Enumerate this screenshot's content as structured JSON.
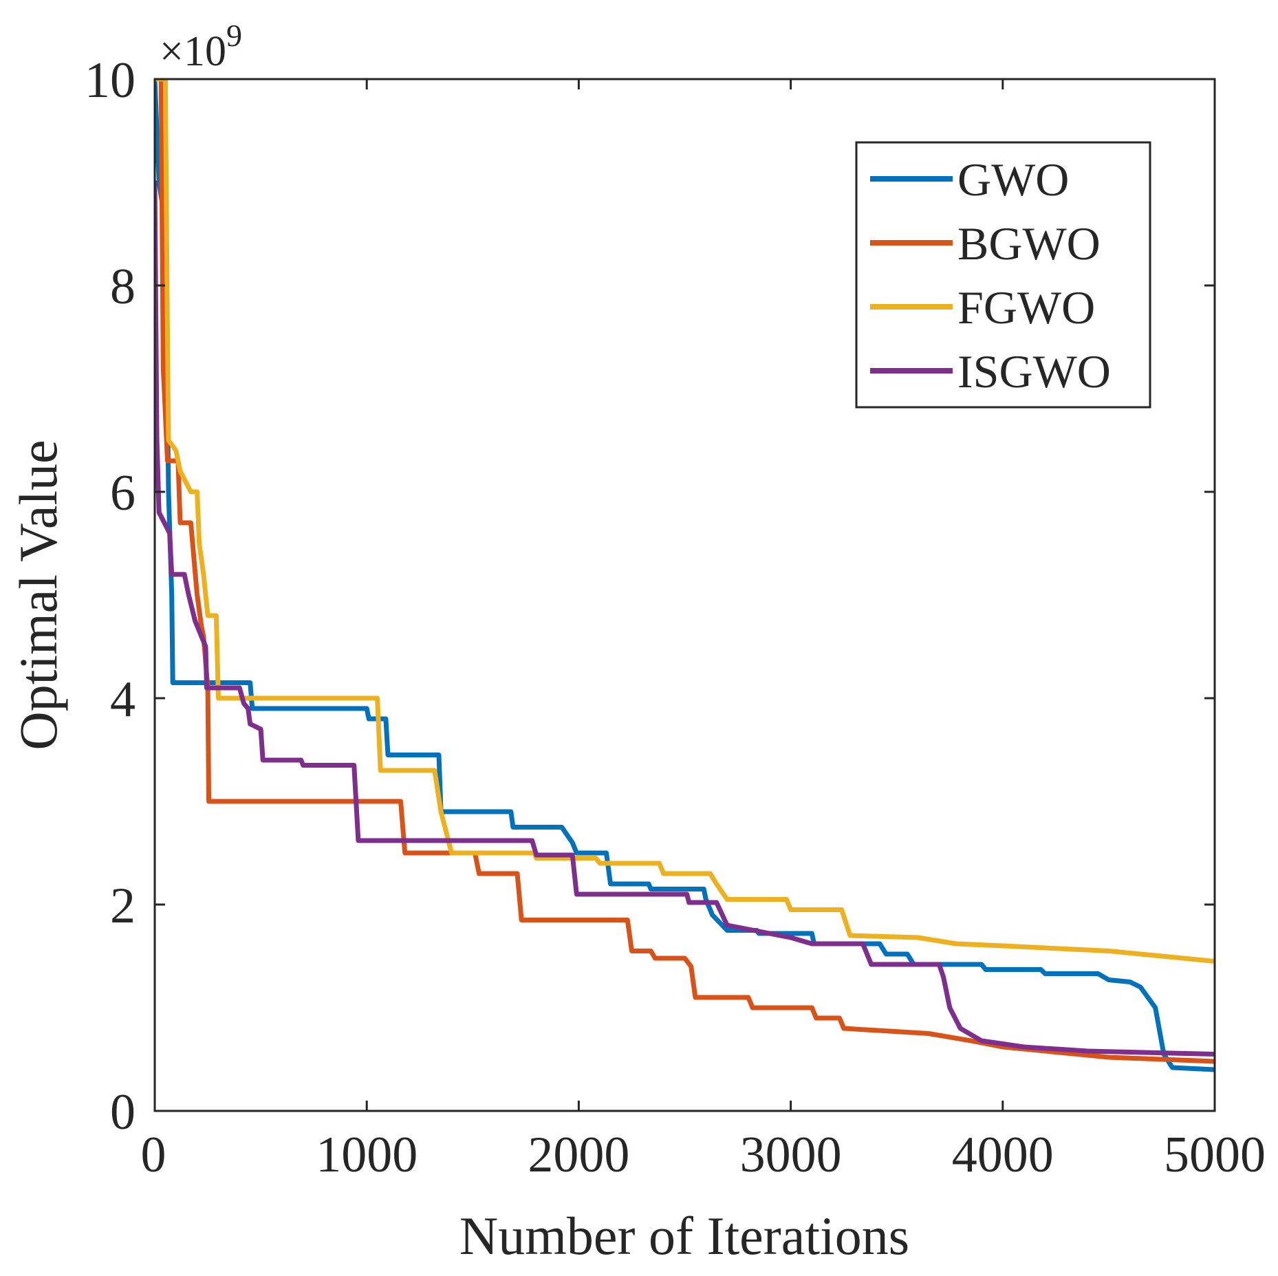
{
  "chart_data": {
    "type": "line",
    "title": "",
    "xlabel": "Number of Iterations",
    "ylabel": "Optimal Value",
    "y_multiplier_label": "×10",
    "y_multiplier_exponent": "9",
    "xlim": [
      0,
      5000
    ],
    "ylim": [
      0,
      10
    ],
    "x_ticks": [
      0,
      1000,
      2000,
      3000,
      4000,
      5000
    ],
    "y_ticks": [
      0,
      2,
      4,
      6,
      8,
      10
    ],
    "x_tick_labels": [
      "0",
      "1000",
      "2000",
      "3000",
      "4000",
      "5000"
    ],
    "y_tick_labels": [
      "0",
      "2",
      "4",
      "6",
      "8",
      "10"
    ],
    "grid": false,
    "legend_position": "top-right",
    "series": [
      {
        "name": "GWO",
        "color": "#0072BD",
        "points": [
          [
            0,
            10
          ],
          [
            20,
            9
          ],
          [
            50,
            8.6
          ],
          [
            65,
            6
          ],
          [
            80,
            5
          ],
          [
            85,
            4.15
          ],
          [
            450,
            4.15
          ],
          [
            460,
            3.9
          ],
          [
            1000,
            3.9
          ],
          [
            1010,
            3.8
          ],
          [
            1090,
            3.8
          ],
          [
            1100,
            3.45
          ],
          [
            1340,
            3.45
          ],
          [
            1350,
            2.9
          ],
          [
            1680,
            2.9
          ],
          [
            1690,
            2.75
          ],
          [
            1920,
            2.75
          ],
          [
            1970,
            2.6
          ],
          [
            1990,
            2.5
          ],
          [
            2130,
            2.5
          ],
          [
            2150,
            2.2
          ],
          [
            2330,
            2.2
          ],
          [
            2340,
            2.15
          ],
          [
            2590,
            2.15
          ],
          [
            2600,
            2.05
          ],
          [
            2630,
            1.9
          ],
          [
            2700,
            1.75
          ],
          [
            2840,
            1.75
          ],
          [
            2850,
            1.72
          ],
          [
            3100,
            1.72
          ],
          [
            3110,
            1.62
          ],
          [
            3420,
            1.62
          ],
          [
            3450,
            1.52
          ],
          [
            3550,
            1.52
          ],
          [
            3580,
            1.42
          ],
          [
            3900,
            1.42
          ],
          [
            3920,
            1.37
          ],
          [
            4180,
            1.37
          ],
          [
            4200,
            1.33
          ],
          [
            4450,
            1.33
          ],
          [
            4500,
            1.27
          ],
          [
            4600,
            1.25
          ],
          [
            4650,
            1.2
          ],
          [
            4720,
            1.0
          ],
          [
            4760,
            0.55
          ],
          [
            4800,
            0.42
          ],
          [
            5000,
            0.4
          ]
        ]
      },
      {
        "name": "BGWO",
        "color": "#D95319",
        "points": [
          [
            0,
            10
          ],
          [
            30,
            10
          ],
          [
            40,
            7.2
          ],
          [
            60,
            6.3
          ],
          [
            110,
            6.3
          ],
          [
            120,
            5.7
          ],
          [
            170,
            5.7
          ],
          [
            200,
            5.0
          ],
          [
            220,
            4.7
          ],
          [
            230,
            4.6
          ],
          [
            250,
            4.1
          ],
          [
            255,
            3.0
          ],
          [
            1160,
            3.0
          ],
          [
            1180,
            2.5
          ],
          [
            1510,
            2.5
          ],
          [
            1530,
            2.3
          ],
          [
            1710,
            2.3
          ],
          [
            1730,
            1.85
          ],
          [
            2230,
            1.85
          ],
          [
            2250,
            1.55
          ],
          [
            2340,
            1.55
          ],
          [
            2360,
            1.48
          ],
          [
            2500,
            1.48
          ],
          [
            2530,
            1.4
          ],
          [
            2550,
            1.1
          ],
          [
            2800,
            1.1
          ],
          [
            2820,
            1.0
          ],
          [
            3100,
            1.0
          ],
          [
            3120,
            0.9
          ],
          [
            3230,
            0.9
          ],
          [
            3250,
            0.8
          ],
          [
            3650,
            0.75
          ],
          [
            3850,
            0.68
          ],
          [
            4000,
            0.62
          ],
          [
            4500,
            0.52
          ],
          [
            5000,
            0.48
          ]
        ]
      },
      {
        "name": "FGWO",
        "color": "#EDB120",
        "points": [
          [
            0,
            10
          ],
          [
            50,
            10
          ],
          [
            60,
            7.5
          ],
          [
            65,
            6.5
          ],
          [
            100,
            6.4
          ],
          [
            120,
            6.2
          ],
          [
            170,
            6.0
          ],
          [
            200,
            6.0
          ],
          [
            210,
            5.5
          ],
          [
            230,
            5.2
          ],
          [
            250,
            4.8
          ],
          [
            290,
            4.8
          ],
          [
            300,
            4.0
          ],
          [
            450,
            4.0
          ],
          [
            460,
            4.0
          ],
          [
            1050,
            4.0
          ],
          [
            1065,
            3.3
          ],
          [
            1320,
            3.3
          ],
          [
            1350,
            2.9
          ],
          [
            1400,
            2.5
          ],
          [
            1790,
            2.5
          ],
          [
            1800,
            2.45
          ],
          [
            2080,
            2.45
          ],
          [
            2100,
            2.4
          ],
          [
            2380,
            2.4
          ],
          [
            2400,
            2.3
          ],
          [
            2620,
            2.3
          ],
          [
            2650,
            2.2
          ],
          [
            2700,
            2.05
          ],
          [
            2980,
            2.05
          ],
          [
            3000,
            1.95
          ],
          [
            3240,
            1.95
          ],
          [
            3280,
            1.7
          ],
          [
            3600,
            1.68
          ],
          [
            3780,
            1.62
          ],
          [
            4000,
            1.6
          ],
          [
            4500,
            1.55
          ],
          [
            5000,
            1.45
          ]
        ]
      },
      {
        "name": "ISGWO",
        "color": "#7E2F8E",
        "points": [
          [
            0,
            9
          ],
          [
            10,
            6.5
          ],
          [
            20,
            5.8
          ],
          [
            70,
            5.6
          ],
          [
            80,
            5.2
          ],
          [
            140,
            5.2
          ],
          [
            160,
            5.0
          ],
          [
            190,
            4.75
          ],
          [
            240,
            4.5
          ],
          [
            245,
            4.1
          ],
          [
            400,
            4.1
          ],
          [
            420,
            3.95
          ],
          [
            440,
            3.9
          ],
          [
            450,
            3.75
          ],
          [
            500,
            3.7
          ],
          [
            510,
            3.4
          ],
          [
            690,
            3.4
          ],
          [
            700,
            3.35
          ],
          [
            940,
            3.35
          ],
          [
            960,
            2.62
          ],
          [
            1780,
            2.62
          ],
          [
            1800,
            2.48
          ],
          [
            1970,
            2.48
          ],
          [
            1990,
            2.1
          ],
          [
            2510,
            2.1
          ],
          [
            2520,
            2.02
          ],
          [
            2650,
            2.02
          ],
          [
            2700,
            1.8
          ],
          [
            3000,
            1.68
          ],
          [
            3050,
            1.65
          ],
          [
            3100,
            1.62
          ],
          [
            3340,
            1.62
          ],
          [
            3380,
            1.42
          ],
          [
            3700,
            1.42
          ],
          [
            3720,
            1.3
          ],
          [
            3750,
            1.0
          ],
          [
            3800,
            0.8
          ],
          [
            3900,
            0.68
          ],
          [
            4100,
            0.62
          ],
          [
            4400,
            0.58
          ],
          [
            5000,
            0.55
          ]
        ]
      }
    ]
  }
}
